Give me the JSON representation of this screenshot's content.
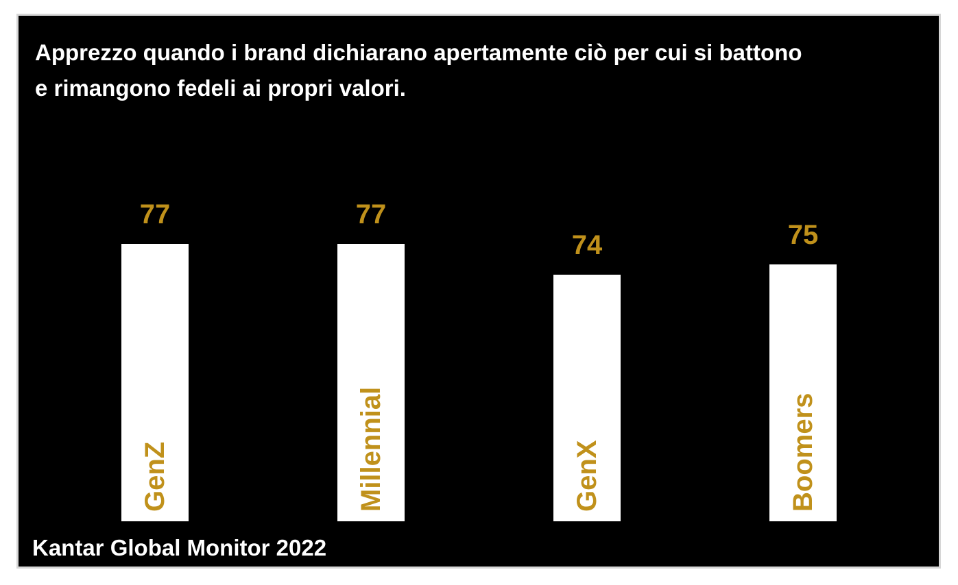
{
  "title": {
    "line1": "Apprezzo quando i brand dichiarano apertamente ciò per cui si battono",
    "line2": "e rimangono fedeli ai propri valori."
  },
  "source": "Kantar Global Monitor 2022",
  "colors": {
    "background": "#000000",
    "bar": "#ffffff",
    "accent": "#c0911b",
    "text": "#ffffff"
  },
  "chart_data": {
    "type": "bar",
    "title": "Apprezzo quando i brand dichiarano apertamente ciò per cui si battono e rimangono fedeli ai propri valori.",
    "categories": [
      "GenZ",
      "Millennial",
      "GenX",
      "Boomers"
    ],
    "values": [
      77,
      77,
      74,
      75
    ],
    "ylim": [
      50,
      77
    ],
    "xlabel": "",
    "ylabel": "",
    "grid": false,
    "legend": "none",
    "category_labels_position": "inside-bar-rotated",
    "data_labels": true
  }
}
